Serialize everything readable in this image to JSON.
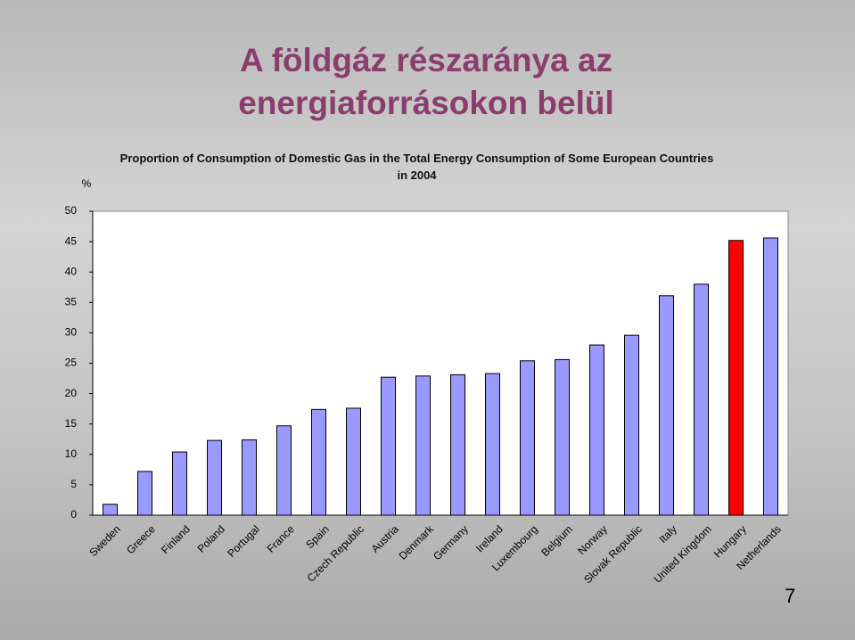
{
  "slide": {
    "title": "A földgáz részaránya az energiaforrásokon belül",
    "page_number": "7"
  },
  "chart_data": {
    "type": "bar",
    "title": "Proportion of Consumption of Domestic Gas in the Total Energy Consumption of Some European Countries in 2004",
    "y_label": "%",
    "categories": [
      "Sweden",
      "Greece",
      "Finland",
      "Poland",
      "Portugal",
      "France",
      "Spain",
      "Czech Republic",
      "Austria",
      "Denmark",
      "Germany",
      "Ireland",
      "Luxembourg",
      "Belgium",
      "Norway",
      "Slovak Republic",
      "Italy",
      "United Kingdom",
      "Hungary",
      "Netherlands"
    ],
    "values": [
      1.8,
      7.2,
      10.4,
      12.3,
      12.4,
      14.7,
      17.4,
      17.6,
      22.7,
      22.9,
      23.1,
      23.3,
      25.4,
      25.6,
      28.0,
      29.6,
      36.1,
      38.0,
      45.2,
      45.6
    ],
    "colors": [
      "#9999ff",
      "#9999ff",
      "#9999ff",
      "#9999ff",
      "#9999ff",
      "#9999ff",
      "#9999ff",
      "#9999ff",
      "#9999ff",
      "#9999ff",
      "#9999ff",
      "#9999ff",
      "#9999ff",
      "#9999ff",
      "#9999ff",
      "#9999ff",
      "#9999ff",
      "#9999ff",
      "#ff0000",
      "#9999ff"
    ],
    "ylim": [
      0,
      50
    ],
    "yticks": [
      0,
      5,
      10,
      15,
      20,
      25,
      30,
      35,
      40,
      45,
      50
    ],
    "grid": false
  }
}
